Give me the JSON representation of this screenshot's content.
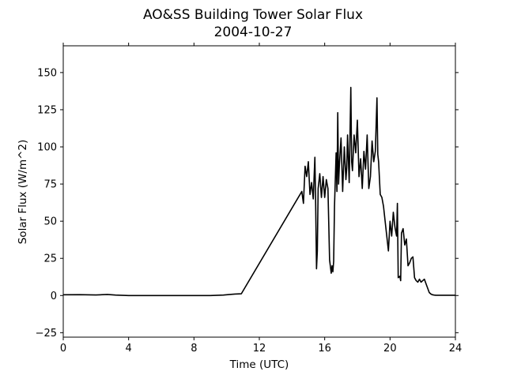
{
  "chart_data": {
    "type": "line",
    "title": "AO&SS Building Tower Solar Flux",
    "subtitle": "2004-10-27",
    "xlabel": "Time (UTC)",
    "ylabel": "Solar Flux (W/m^2)",
    "xlim": [
      0,
      24
    ],
    "ylim": [
      -28,
      168
    ],
    "xticks": [
      0,
      4,
      8,
      12,
      16,
      20,
      24
    ],
    "yticks": [
      -25,
      0,
      25,
      50,
      75,
      100,
      125,
      150
    ],
    "grid": false,
    "legend": "none",
    "series": [
      {
        "color": "#000000",
        "x": [
          0,
          1,
          2,
          2.7,
          3.2,
          4,
          5,
          6,
          7,
          8,
          9,
          9.8,
          10.2,
          10.5,
          10.9,
          14.6,
          14.7,
          14.8,
          14.9,
          15.0,
          15.1,
          15.2,
          15.3,
          15.4,
          15.45,
          15.5,
          15.55,
          15.6,
          15.7,
          15.8,
          15.9,
          16.0,
          16.1,
          16.2,
          16.3,
          16.4,
          16.45,
          16.5,
          16.55,
          16.6,
          16.7,
          16.75,
          16.8,
          16.85,
          16.9,
          17.0,
          17.1,
          17.2,
          17.3,
          17.35,
          17.4,
          17.5,
          17.6,
          17.65,
          17.7,
          17.8,
          17.9,
          18.0,
          18.1,
          18.2,
          18.3,
          18.4,
          18.5,
          18.6,
          18.7,
          18.8,
          18.9,
          19.0,
          19.1,
          19.2,
          19.25,
          19.3,
          19.4,
          19.5,
          19.6,
          19.7,
          19.8,
          19.9,
          20.0,
          20.1,
          20.2,
          20.3,
          20.4,
          20.45,
          20.5,
          20.6,
          20.65,
          20.7,
          20.8,
          20.9,
          21.0,
          21.1,
          21.2,
          21.3,
          21.4,
          21.5,
          21.6,
          21.7,
          21.8,
          21.9,
          22.0,
          22.1,
          22.2,
          22.3,
          22.4,
          22.5,
          22.6,
          22.7,
          22.8,
          23.0,
          23.2,
          24
        ],
        "y": [
          0.5,
          0.6,
          0.4,
          0.7,
          0.3,
          0,
          0,
          0,
          0,
          0,
          0,
          0.3,
          0.7,
          1.0,
          1.2,
          70,
          62,
          87,
          80,
          90,
          68,
          76,
          65,
          93,
          60,
          18,
          30,
          72,
          82,
          66,
          80,
          66,
          78,
          72,
          24,
          15,
          20,
          16,
          23,
          60,
          96,
          70,
          123,
          75,
          88,
          106,
          70,
          100,
          78,
          86,
          108,
          76,
          140,
          90,
          84,
          108,
          96,
          118,
          80,
          92,
          72,
          97,
          85,
          108,
          72,
          80,
          104,
          90,
          97,
          133,
          95,
          90,
          68,
          66,
          60,
          50,
          40,
          30,
          50,
          40,
          56,
          46,
          40,
          62,
          12,
          13,
          10,
          42,
          45,
          34,
          38,
          20,
          22,
          25,
          26,
          12,
          10,
          9,
          11,
          9,
          10,
          11,
          8,
          5,
          2,
          1,
          0.5,
          0.3,
          0.2,
          0.2,
          0.2,
          0.2
        ]
      }
    ]
  }
}
